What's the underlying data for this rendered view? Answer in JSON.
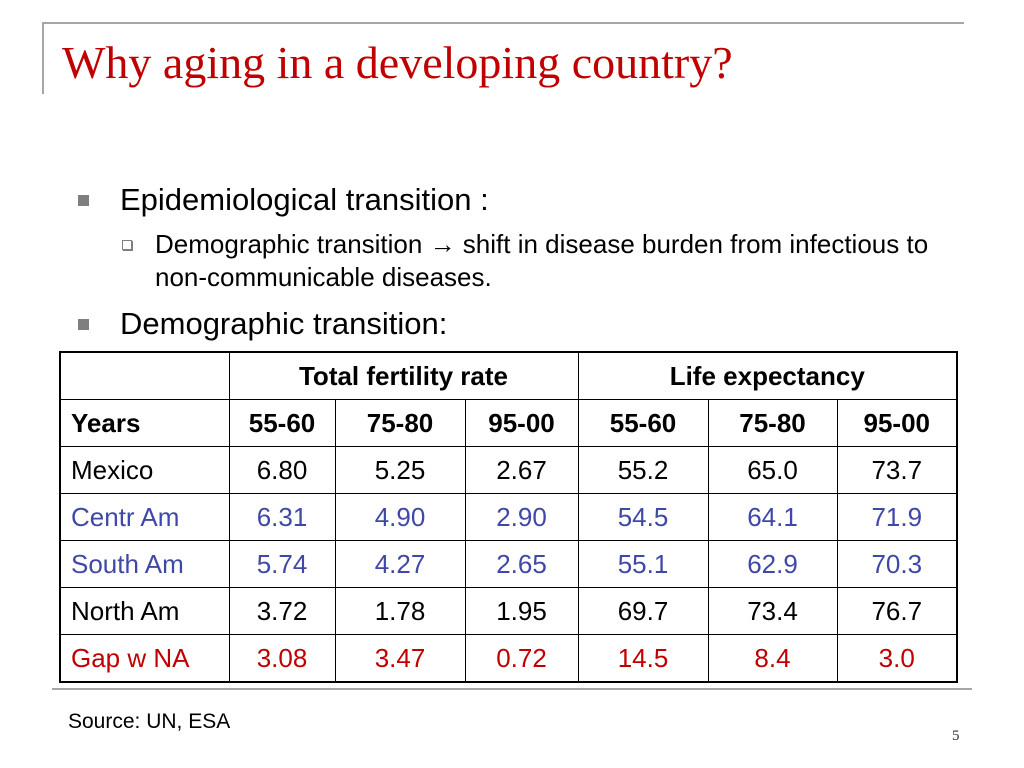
{
  "title": "Why aging in a developing country?",
  "bullets": [
    {
      "text": "Epidemiological transition :",
      "sub": "Demographic transition → shift in disease burden from infectious to non-communicable diseases."
    },
    {
      "text": "Demographic transition:"
    }
  ],
  "table": {
    "group_headers": [
      "",
      "Total fertility rate",
      "Life expectancy"
    ],
    "column_headers": [
      "Years",
      "55-60",
      "75-80",
      "95-00",
      "55-60",
      "75-80",
      "95-00"
    ],
    "rows": [
      {
        "label": "Mexico",
        "values": [
          "6.80",
          "5.25",
          "2.67",
          "55.2",
          "65.0",
          "73.7"
        ],
        "color": "#000000"
      },
      {
        "label": "Centr Am",
        "values": [
          "6.31",
          "4.90",
          "2.90",
          "54.5",
          "64.1",
          "71.9"
        ],
        "color": "#3f48a8"
      },
      {
        "label": "South Am",
        "values": [
          "5.74",
          "4.27",
          "2.65",
          "55.1",
          "62.9",
          "70.3"
        ],
        "color": "#3f48a8"
      },
      {
        "label": "North Am",
        "values": [
          "3.72",
          "1.78",
          "1.95",
          "69.7",
          "73.4",
          "76.7"
        ],
        "color": "#000000"
      },
      {
        "label": "Gap w NA",
        "values": [
          "3.08",
          "3.47",
          "0.72",
          "14.5",
          "8.4",
          "3.0"
        ],
        "color": "#c00000"
      }
    ]
  },
  "source": "Source: UN, ESA",
  "page_number": "5",
  "colors": {
    "title": "#c00000",
    "accent_blue": "#3f48a8",
    "accent_red": "#c00000"
  }
}
